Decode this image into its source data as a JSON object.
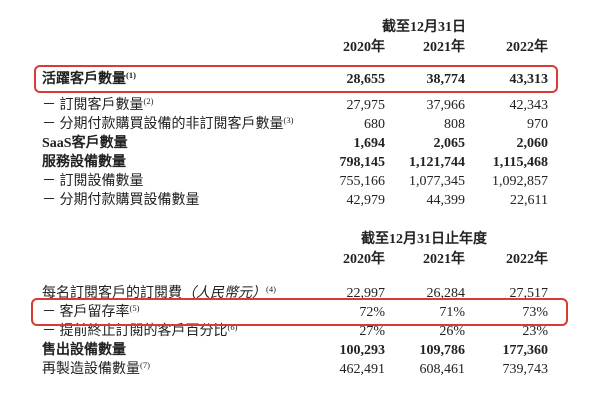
{
  "page": {
    "background_color": "#ffffff",
    "text_color": "#222222",
    "highlight_box_color": "#d63c32"
  },
  "table1": {
    "period_header": "截至12月31日",
    "years": [
      "2020年",
      "2021年",
      "2022年"
    ],
    "rows": [
      {
        "label": "活躍客戶數量",
        "note": "",
        "sup": "(1)",
        "values": [
          "28,655",
          "38,774",
          "43,313"
        ]
      },
      {
        "label": "－ 訂閱客戶數量",
        "note": "",
        "sup": "(2)",
        "values": [
          "27,975",
          "37,966",
          "42,343"
        ]
      },
      {
        "label": "－ 分期付款購買設備的非訂閱客戶數量",
        "note": "",
        "sup": "(3)",
        "values": [
          "680",
          "808",
          "970"
        ]
      },
      {
        "label": "SaaS客戶數量",
        "note": "",
        "sup": "",
        "values": [
          "1,694",
          "2,065",
          "2,060"
        ]
      },
      {
        "label": "服務設備數量",
        "note": "",
        "sup": "",
        "values": [
          "798,145",
          "1,121,744",
          "1,115,468"
        ]
      },
      {
        "label": "－ 訂閱設備數量",
        "note": "",
        "sup": "",
        "values": [
          "755,166",
          "1,077,345",
          "1,092,857"
        ]
      },
      {
        "label": "－ 分期付款購買設備數量",
        "note": "",
        "sup": "",
        "values": [
          "42,979",
          "44,399",
          "22,611"
        ]
      }
    ]
  },
  "table2": {
    "period_header": "截至12月31日止年度",
    "years": [
      "2020年",
      "2021年",
      "2022年"
    ],
    "rows": [
      {
        "label": "每名訂閱客戶的訂閱費",
        "note": "（人民幣元）",
        "sup": "(4)",
        "values": [
          "22,997",
          "26,284",
          "27,517"
        ]
      },
      {
        "label": "－ 客戶留存率",
        "note": "",
        "sup": "(5)",
        "values": [
          "72%",
          "71%",
          "73%"
        ]
      },
      {
        "label": "－ 提前終止訂閱的客戶百分比",
        "note": "",
        "sup": "(6)",
        "values": [
          "27%",
          "26%",
          "23%"
        ]
      },
      {
        "label": "售出設備數量",
        "note": "",
        "sup": "",
        "values": [
          "100,293",
          "109,786",
          "177,360"
        ]
      },
      {
        "label": "再製造設備數量",
        "note": "",
        "sup": "(7)",
        "values": [
          "462,491",
          "608,461",
          "739,743"
        ]
      }
    ]
  }
}
